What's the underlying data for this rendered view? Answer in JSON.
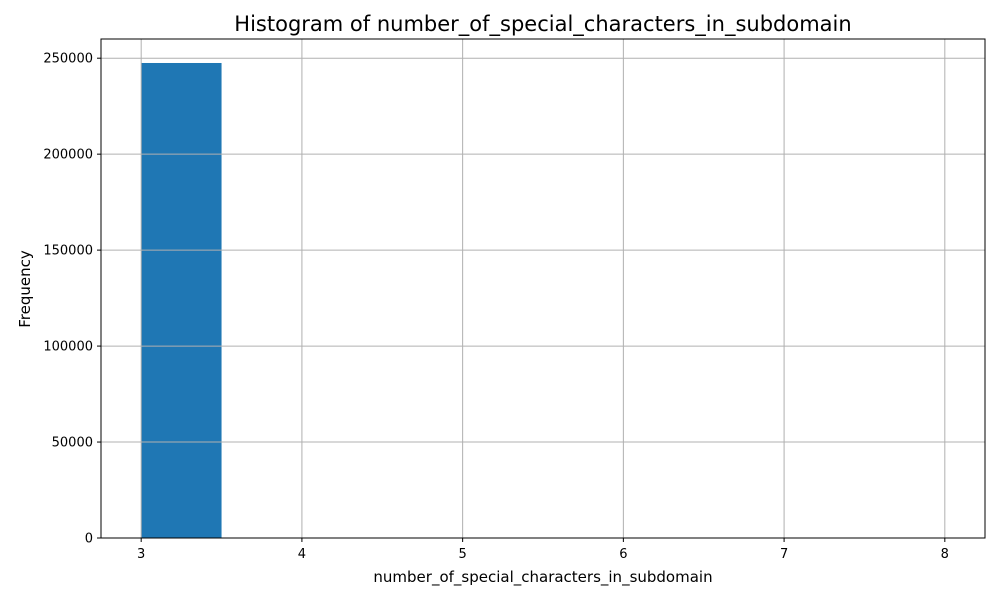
{
  "chart_data": {
    "type": "bar",
    "title": "Histogram of number_of_special_characters_in_subdomain",
    "xlabel": "number_of_special_characters_in_subdomain",
    "ylabel": "Frequency",
    "xlim": [
      2.75,
      8.25
    ],
    "ylim": [
      0,
      260000
    ],
    "xticks": [
      3,
      4,
      5,
      6,
      7,
      8
    ],
    "yticks": [
      0,
      50000,
      100000,
      150000,
      200000,
      250000
    ],
    "grid": true,
    "bins": [
      {
        "x0": 3.0,
        "x1": 3.5,
        "value": 247500
      },
      {
        "x0": 3.5,
        "x1": 4.0,
        "value": 0
      },
      {
        "x0": 4.0,
        "x1": 4.5,
        "value": 0
      },
      {
        "x0": 4.5,
        "x1": 5.0,
        "value": 0
      },
      {
        "x0": 5.0,
        "x1": 5.5,
        "value": 0
      },
      {
        "x0": 5.5,
        "x1": 6.0,
        "value": 0
      },
      {
        "x0": 6.0,
        "x1": 6.5,
        "value": 0
      },
      {
        "x0": 6.5,
        "x1": 7.0,
        "value": 0
      },
      {
        "x0": 7.0,
        "x1": 7.5,
        "value": 0
      },
      {
        "x0": 7.5,
        "x1": 8.0,
        "value": 0
      }
    ],
    "bar_color": "#1f77b4",
    "grid_color": "#b0b0b0"
  }
}
